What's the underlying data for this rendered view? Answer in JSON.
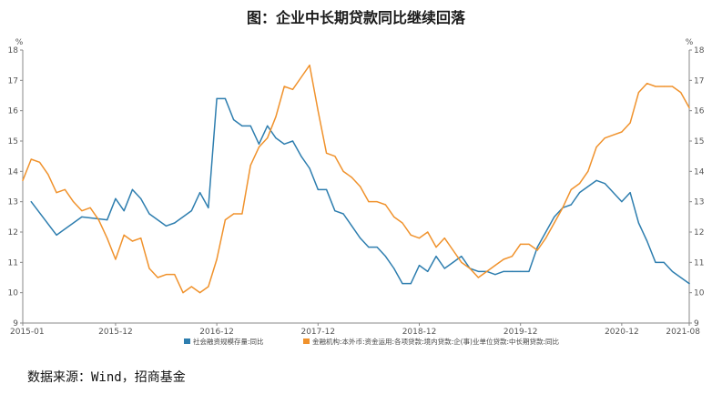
{
  "title": "图：企业中长期贷款同比继续回落",
  "source": "数据来源：Wind，招商基金",
  "chart_data": {
    "type": "line",
    "title": "图：企业中长期贷款同比继续回落",
    "y_unit_left": "%",
    "y_unit_right": "%",
    "ylim": [
      9,
      18
    ],
    "yticks": [
      9,
      10,
      11,
      12,
      13,
      14,
      15,
      16,
      17,
      18
    ],
    "x_tick_labels": [
      "2015-01",
      "2015-12",
      "2016-12",
      "2017-12",
      "2018-12",
      "2019-12",
      "2020-12",
      "2021-08"
    ],
    "x_tick_dates": [
      "2015-01",
      "2015-12",
      "2016-12",
      "2017-12",
      "2018-12",
      "2019-12",
      "2020-12",
      "2021-08"
    ],
    "x_range": [
      "2015-01",
      "2021-08"
    ],
    "grid": false,
    "legend_position": "bottom",
    "colors": {
      "series1": "#2e7eaf",
      "series2": "#f0922c"
    },
    "series": [
      {
        "name": "社会融资规模存量:同比",
        "color": "#2e7eaf",
        "data": [
          [
            "2015-02",
            13.0
          ],
          [
            "2015-05",
            11.9
          ],
          [
            "2015-08",
            12.5
          ],
          [
            "2015-11",
            12.4
          ],
          [
            "2015-12",
            13.1
          ],
          [
            "2016-01",
            12.7
          ],
          [
            "2016-02",
            13.4
          ],
          [
            "2016-03",
            13.1
          ],
          [
            "2016-04",
            12.6
          ],
          [
            "2016-06",
            12.2
          ],
          [
            "2016-07",
            12.3
          ],
          [
            "2016-09",
            12.7
          ],
          [
            "2016-10",
            13.3
          ],
          [
            "2016-11",
            12.8
          ],
          [
            "2016-12",
            16.4
          ],
          [
            "2017-01",
            16.4
          ],
          [
            "2017-02",
            15.7
          ],
          [
            "2017-03",
            15.5
          ],
          [
            "2017-04",
            15.5
          ],
          [
            "2017-05",
            14.9
          ],
          [
            "2017-06",
            15.5
          ],
          [
            "2017-07",
            15.1
          ],
          [
            "2017-08",
            14.9
          ],
          [
            "2017-09",
            15.0
          ],
          [
            "2017-10",
            14.5
          ],
          [
            "2017-11",
            14.1
          ],
          [
            "2017-12",
            13.4
          ],
          [
            "2018-01",
            13.4
          ],
          [
            "2018-02",
            12.7
          ],
          [
            "2018-03",
            12.6
          ],
          [
            "2018-04",
            12.2
          ],
          [
            "2018-05",
            11.8
          ],
          [
            "2018-06",
            11.5
          ],
          [
            "2018-07",
            11.5
          ],
          [
            "2018-08",
            11.2
          ],
          [
            "2018-09",
            10.8
          ],
          [
            "2018-10",
            10.3
          ],
          [
            "2018-11",
            10.3
          ],
          [
            "2018-12",
            10.9
          ],
          [
            "2019-01",
            10.7
          ],
          [
            "2019-02",
            11.2
          ],
          [
            "2019-03",
            10.8
          ],
          [
            "2019-04",
            11.0
          ],
          [
            "2019-05",
            11.2
          ],
          [
            "2019-06",
            10.8
          ],
          [
            "2019-07",
            10.7
          ],
          [
            "2019-08",
            10.7
          ],
          [
            "2019-09",
            10.6
          ],
          [
            "2019-10",
            10.7
          ],
          [
            "2019-11",
            10.7
          ],
          [
            "2019-12",
            10.7
          ],
          [
            "2020-01",
            10.7
          ],
          [
            "2020-02",
            11.5
          ],
          [
            "2020-04",
            12.5
          ],
          [
            "2020-05",
            12.8
          ],
          [
            "2020-06",
            12.9
          ],
          [
            "2020-07",
            13.3
          ],
          [
            "2020-09",
            13.7
          ],
          [
            "2020-10",
            13.6
          ],
          [
            "2020-12",
            13.0
          ],
          [
            "2021-01",
            13.3
          ],
          [
            "2021-02",
            12.3
          ],
          [
            "2021-03",
            11.7
          ],
          [
            "2021-04",
            11.0
          ],
          [
            "2021-05",
            11.0
          ],
          [
            "2021-06",
            10.7
          ],
          [
            "2021-08",
            10.3
          ]
        ]
      },
      {
        "name": "金融机构:本外币:资金运用:各项贷款:境内贷款:企(事)业单位贷款:中长期贷款:同比",
        "color": "#f0922c",
        "data": [
          [
            "2015-01",
            13.7
          ],
          [
            "2015-02",
            14.4
          ],
          [
            "2015-03",
            14.3
          ],
          [
            "2015-04",
            13.9
          ],
          [
            "2015-05",
            13.3
          ],
          [
            "2015-06",
            13.4
          ],
          [
            "2015-07",
            13.0
          ],
          [
            "2015-08",
            12.7
          ],
          [
            "2015-09",
            12.8
          ],
          [
            "2015-10",
            12.4
          ],
          [
            "2015-11",
            11.8
          ],
          [
            "2015-12",
            11.1
          ],
          [
            "2016-01",
            11.9
          ],
          [
            "2016-02",
            11.7
          ],
          [
            "2016-03",
            11.8
          ],
          [
            "2016-04",
            10.8
          ],
          [
            "2016-05",
            10.5
          ],
          [
            "2016-06",
            10.6
          ],
          [
            "2016-07",
            10.6
          ],
          [
            "2016-08",
            10.0
          ],
          [
            "2016-09",
            10.2
          ],
          [
            "2016-10",
            10.0
          ],
          [
            "2016-11",
            10.2
          ],
          [
            "2016-12",
            11.1
          ],
          [
            "2017-01",
            12.4
          ],
          [
            "2017-02",
            12.6
          ],
          [
            "2017-03",
            12.6
          ],
          [
            "2017-04",
            14.2
          ],
          [
            "2017-05",
            14.8
          ],
          [
            "2017-06",
            15.1
          ],
          [
            "2017-07",
            15.8
          ],
          [
            "2017-08",
            16.8
          ],
          [
            "2017-09",
            16.7
          ],
          [
            "2017-10",
            17.1
          ],
          [
            "2017-11",
            17.5
          ],
          [
            "2017-12",
            16.0
          ],
          [
            "2018-01",
            14.6
          ],
          [
            "2018-02",
            14.5
          ],
          [
            "2018-03",
            14.0
          ],
          [
            "2018-04",
            13.8
          ],
          [
            "2018-05",
            13.5
          ],
          [
            "2018-06",
            13.0
          ],
          [
            "2018-07",
            13.0
          ],
          [
            "2018-08",
            12.9
          ],
          [
            "2018-09",
            12.5
          ],
          [
            "2018-10",
            12.3
          ],
          [
            "2018-11",
            11.9
          ],
          [
            "2018-12",
            11.8
          ],
          [
            "2019-01",
            12.0
          ],
          [
            "2019-02",
            11.5
          ],
          [
            "2019-03",
            11.8
          ],
          [
            "2019-04",
            11.4
          ],
          [
            "2019-05",
            11.0
          ],
          [
            "2019-06",
            10.8
          ],
          [
            "2019-07",
            10.5
          ],
          [
            "2019-08",
            10.7
          ],
          [
            "2019-09",
            10.9
          ],
          [
            "2019-10",
            11.1
          ],
          [
            "2019-11",
            11.2
          ],
          [
            "2019-12",
            11.6
          ],
          [
            "2020-01",
            11.6
          ],
          [
            "2020-02",
            11.4
          ],
          [
            "2020-03",
            11.8
          ],
          [
            "2020-04",
            12.3
          ],
          [
            "2020-05",
            12.8
          ],
          [
            "2020-06",
            13.4
          ],
          [
            "2020-07",
            13.6
          ],
          [
            "2020-08",
            14.0
          ],
          [
            "2020-09",
            14.8
          ],
          [
            "2020-10",
            15.1
          ],
          [
            "2020-11",
            15.2
          ],
          [
            "2020-12",
            15.3
          ],
          [
            "2021-01",
            15.6
          ],
          [
            "2021-02",
            16.6
          ],
          [
            "2021-03",
            16.9
          ],
          [
            "2021-04",
            16.8
          ],
          [
            "2021-05",
            16.8
          ],
          [
            "2021-06",
            16.8
          ],
          [
            "2021-07",
            16.6
          ],
          [
            "2021-08",
            16.1
          ]
        ]
      }
    ]
  }
}
